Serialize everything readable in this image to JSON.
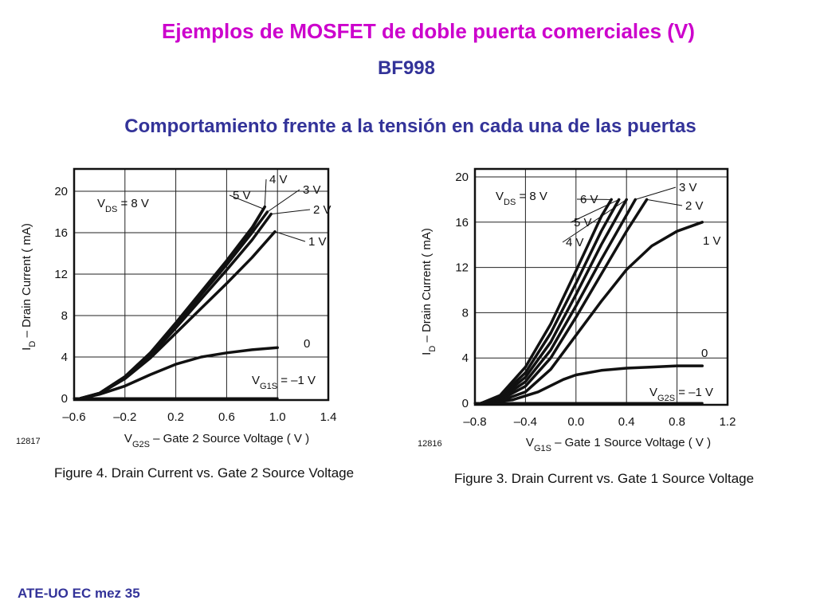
{
  "slide": {
    "title": "Ejemplos de MOSFET de doble puerta comerciales (V)",
    "subtitle": "BF998",
    "heading": "Comportamiento frente a la tensión en cada una de las puertas",
    "footer": "ATE-UO EC mez 35"
  },
  "colors": {
    "title": "#cc00cc",
    "heading": "#333399",
    "curves": "#111111"
  },
  "chart_data": [
    {
      "type": "line",
      "figure_id": "12817",
      "caption": "Figure 4. Drain Current vs. Gate 2 Source Voltage",
      "xlabel": {
        "main": "V",
        "sub": "G2S",
        "rest": " – Gate 2 Source Voltage ( V )"
      },
      "ylabel": {
        "main": "I",
        "sub": "D",
        "rest": " – Drain Current ( mA)"
      },
      "xlim": [
        -0.6,
        1.4
      ],
      "ylim": [
        0,
        20
      ],
      "xticks": [
        -0.6,
        -0.2,
        0.2,
        0.6,
        1.0,
        1.4
      ],
      "xtick_labels": [
        "–0.6",
        "–0.2",
        "0.2",
        "0.6",
        "1.0",
        "1.4"
      ],
      "yticks": [
        0,
        4,
        8,
        12,
        16,
        20
      ],
      "ytick_labels": [
        "0",
        "4",
        "8",
        "12",
        "16",
        "20"
      ],
      "grid": true,
      "annotations": [
        {
          "main": "V",
          "sub": "DS",
          "rest": " = 8 V"
        },
        {
          "main": "V",
          "sub": "G1S",
          "rest": " = –1 V"
        }
      ],
      "series": [
        {
          "name": "–1 V",
          "x": [
            -0.6,
            1.0
          ],
          "y": [
            0,
            0
          ]
        },
        {
          "name": "0",
          "x": [
            -0.55,
            -0.4,
            -0.2,
            0.0,
            0.2,
            0.4,
            0.6,
            0.8,
            1.0
          ],
          "y": [
            0,
            0.4,
            1.2,
            2.3,
            3.3,
            4.0,
            4.4,
            4.7,
            4.9
          ]
        },
        {
          "name": "1 V",
          "x": [
            -0.55,
            -0.4,
            -0.2,
            0.0,
            0.2,
            0.4,
            0.6,
            0.8,
            0.98
          ],
          "y": [
            0,
            0.45,
            1.9,
            3.9,
            6.3,
            8.7,
            11.1,
            13.6,
            16.1
          ]
        },
        {
          "name": "2 V",
          "x": [
            -0.55,
            -0.4,
            -0.2,
            0.0,
            0.2,
            0.4,
            0.6,
            0.8,
            0.95
          ],
          "y": [
            0,
            0.5,
            2.0,
            4.1,
            6.8,
            9.6,
            12.4,
            15.3,
            17.8
          ]
        },
        {
          "name": "3 V",
          "x": [
            -0.55,
            -0.4,
            -0.2,
            0.0,
            0.2,
            0.4,
            0.6,
            0.8,
            0.92
          ],
          "y": [
            0,
            0.5,
            2.1,
            4.3,
            7.1,
            10.0,
            12.9,
            16.0,
            18.0
          ]
        },
        {
          "name": "4 V",
          "x": [
            -0.55,
            -0.4,
            -0.2,
            0.0,
            0.2,
            0.4,
            0.6,
            0.8,
            0.9
          ],
          "y": [
            0,
            0.5,
            2.1,
            4.4,
            7.2,
            10.2,
            13.2,
            16.4,
            18.5
          ]
        },
        {
          "name": "5 V",
          "x": [
            -0.55,
            -0.4,
            -0.2,
            0.0,
            0.2,
            0.4,
            0.6,
            0.8,
            0.89
          ],
          "y": [
            0,
            0.5,
            2.1,
            4.4,
            7.3,
            10.3,
            13.3,
            16.5,
            18.3
          ]
        }
      ]
    },
    {
      "type": "line",
      "figure_id": "12816",
      "caption": "Figure 3. Drain Current vs. Gate 1 Source Voltage",
      "xlabel": {
        "main": "V",
        "sub": "G1S",
        "rest": " – Gate 1 Source Voltage ( V )"
      },
      "ylabel": {
        "main": "I",
        "sub": "D",
        "rest": " – Drain Current ( mA)"
      },
      "xlim": [
        -0.8,
        1.2
      ],
      "ylim": [
        0,
        20
      ],
      "xticks": [
        -0.8,
        -0.4,
        0.0,
        0.4,
        0.8,
        1.2
      ],
      "xtick_labels": [
        "–0.8",
        "–0.4",
        "0.0",
        "0.4",
        "0.8",
        "1.2"
      ],
      "yticks": [
        0,
        4,
        8,
        12,
        16,
        20
      ],
      "ytick_labels": [
        "0",
        "4",
        "8",
        "12",
        "16",
        "20"
      ],
      "grid": true,
      "annotations": [
        {
          "main": "V",
          "sub": "DS",
          "rest": " = 8 V"
        },
        {
          "main": "V",
          "sub": "G2S",
          "rest": " = –1 V"
        }
      ],
      "series": [
        {
          "name": "–1 V",
          "x": [
            -0.8,
            1.0
          ],
          "y": [
            0,
            0
          ]
        },
        {
          "name": "0",
          "x": [
            -0.75,
            -0.5,
            -0.3,
            -0.1,
            0.0,
            0.2,
            0.4,
            0.6,
            0.8,
            1.0
          ],
          "y": [
            0,
            0.3,
            1.0,
            2.1,
            2.5,
            2.9,
            3.1,
            3.2,
            3.3,
            3.3
          ]
        },
        {
          "name": "1 V",
          "x": [
            -0.75,
            -0.6,
            -0.4,
            -0.2,
            0.0,
            0.2,
            0.4,
            0.6,
            0.8,
            1.0
          ],
          "y": [
            0,
            0.2,
            1.0,
            3.0,
            6.0,
            9.0,
            11.8,
            13.9,
            15.2,
            16.0
          ]
        },
        {
          "name": "2 V",
          "x": [
            -0.75,
            -0.6,
            -0.4,
            -0.2,
            0.0,
            0.2,
            0.4,
            0.56
          ],
          "y": [
            0,
            0.3,
            1.5,
            4.0,
            7.6,
            11.4,
            15.2,
            18.0
          ]
        },
        {
          "name": "3 V",
          "x": [
            -0.75,
            -0.6,
            -0.4,
            -0.2,
            0.0,
            0.2,
            0.47
          ],
          "y": [
            0,
            0.4,
            1.9,
            4.7,
            8.6,
            12.7,
            18.0
          ]
        },
        {
          "name": "4 V",
          "x": [
            -0.75,
            -0.6,
            -0.4,
            -0.2,
            0.0,
            0.2,
            0.4
          ],
          "y": [
            0,
            0.5,
            2.3,
            5.4,
            9.6,
            14.0,
            18.0
          ]
        },
        {
          "name": "5 V",
          "x": [
            -0.75,
            -0.6,
            -0.4,
            -0.2,
            0.0,
            0.2,
            0.34
          ],
          "y": [
            0,
            0.6,
            2.7,
            6.2,
            10.6,
            15.2,
            18.0
          ]
        },
        {
          "name": "6 V",
          "x": [
            -0.75,
            -0.6,
            -0.4,
            -0.2,
            0.0,
            0.2,
            0.28
          ],
          "y": [
            0,
            0.7,
            3.2,
            7.0,
            11.7,
            16.5,
            18.0
          ]
        }
      ]
    }
  ]
}
